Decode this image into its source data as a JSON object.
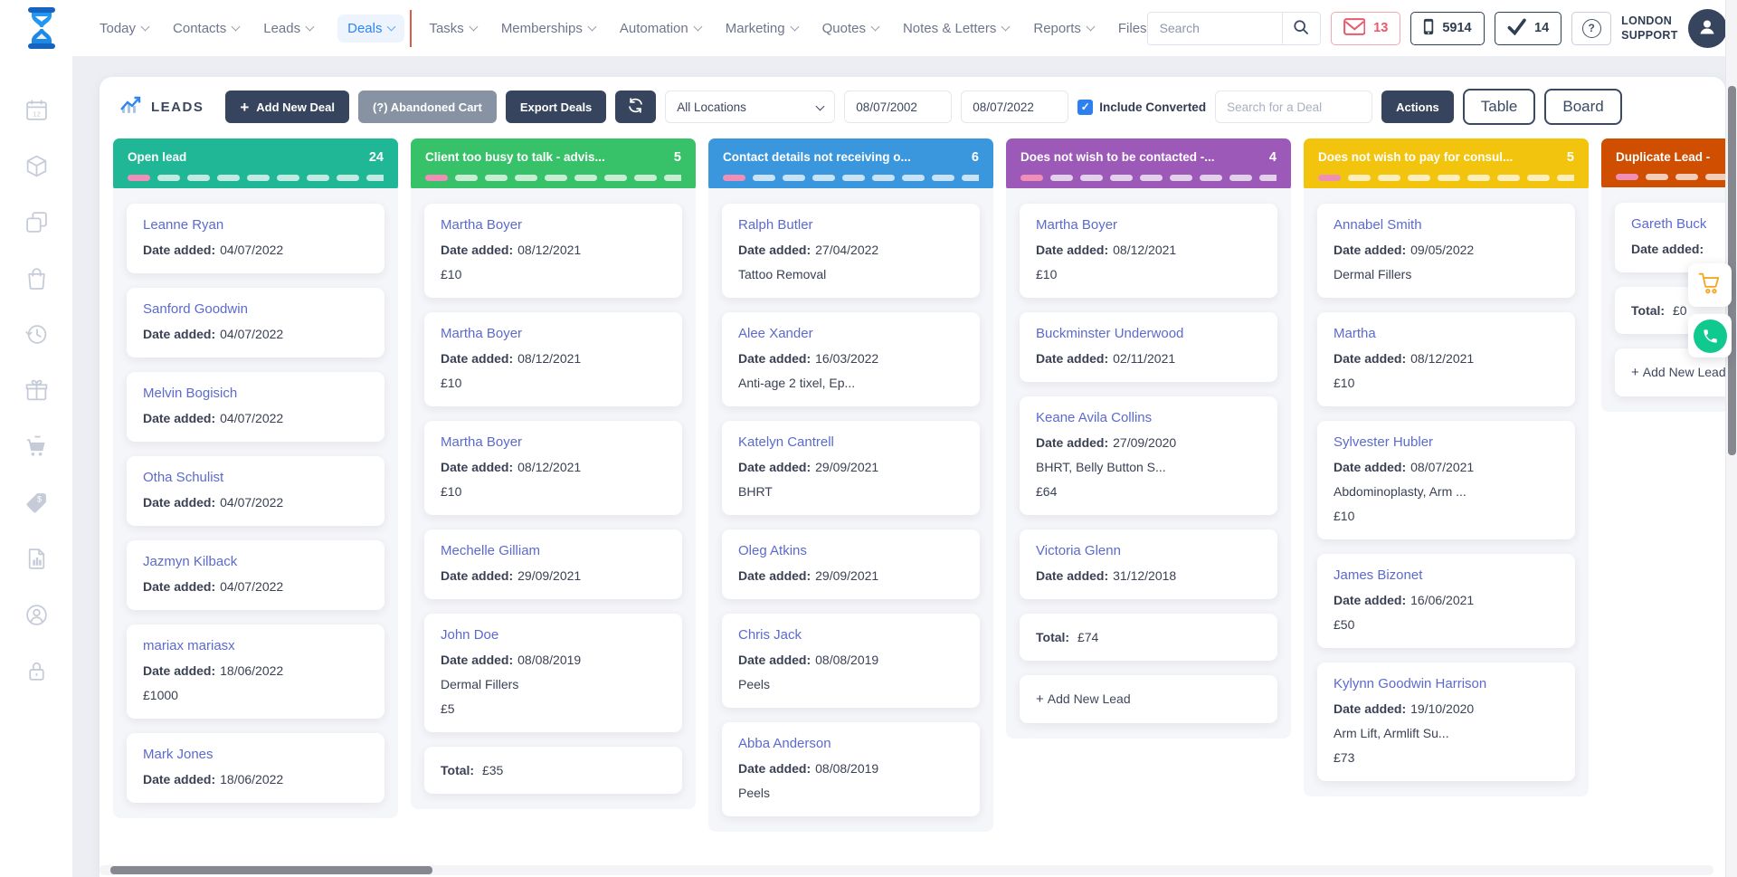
{
  "nav": {
    "items": [
      {
        "label": "Today"
      },
      {
        "label": "Contacts"
      },
      {
        "label": "Leads"
      },
      {
        "label": "Deals",
        "active": true
      },
      {
        "label": "Tasks"
      },
      {
        "label": "Memberships"
      },
      {
        "label": "Automation"
      },
      {
        "label": "Marketing"
      },
      {
        "label": "Quotes"
      },
      {
        "label": "Notes & Letters"
      },
      {
        "label": "Reports"
      },
      {
        "label": "Files",
        "chevron": false
      }
    ]
  },
  "topbar": {
    "search_placeholder": "Search",
    "badges": [
      {
        "name": "messages",
        "icon": "envelope",
        "value": "13",
        "style": "red"
      },
      {
        "name": "sms",
        "icon": "mobile",
        "value": "5914"
      },
      {
        "name": "tasks",
        "icon": "check",
        "value": "14"
      }
    ],
    "help_label": "?",
    "user_line1": "LONDON",
    "user_line2": "SUPPORT"
  },
  "toolbar": {
    "title": "LEADS",
    "add_deal": "Add New Deal",
    "abandoned_cart": "(?) Abandoned Cart",
    "export_deals": "Export Deals",
    "location": "All Locations",
    "date_from": "08/07/2002",
    "date_to": "08/07/2022",
    "include_converted": "Include Converted",
    "include_converted_checked": true,
    "deal_search_placeholder": "Search for a Deal",
    "actions": "Actions",
    "table": "Table",
    "board": "Board"
  },
  "board": {
    "date_label": "Date added:",
    "total_label": "Total:",
    "add_label": "Add New Lead",
    "columns": [
      {
        "title": "Open lead",
        "count": "24",
        "color": "#20b797",
        "cards": [
          {
            "type": "lead",
            "name": "Leanne Ryan",
            "date": "04/07/2022"
          },
          {
            "type": "lead",
            "name": "Sanford Goodwin",
            "date": "04/07/2022"
          },
          {
            "type": "lead",
            "name": "Melvin Bogisich",
            "date": "04/07/2022"
          },
          {
            "type": "lead",
            "name": "Otha Schulist",
            "date": "04/07/2022"
          },
          {
            "type": "lead",
            "name": "Jazmyn Kilback",
            "date": "04/07/2022"
          },
          {
            "type": "lead",
            "name": "mariax mariasx",
            "date": "18/06/2022",
            "extras": [
              "£1000"
            ]
          },
          {
            "type": "lead",
            "name": "Mark Jones",
            "date": "18/06/2022"
          }
        ]
      },
      {
        "title": "Client too busy to talk - advis...",
        "count": "5",
        "color": "#37c269",
        "cards": [
          {
            "type": "lead",
            "name": "Martha Boyer",
            "date": "08/12/2021",
            "extras": [
              "£10"
            ]
          },
          {
            "type": "lead",
            "name": "Martha Boyer",
            "date": "08/12/2021",
            "extras": [
              "£10"
            ]
          },
          {
            "type": "lead",
            "name": "Martha Boyer",
            "date": "08/12/2021",
            "extras": [
              "£10"
            ]
          },
          {
            "type": "lead",
            "name": "Mechelle Gilliam",
            "date": "29/09/2021"
          },
          {
            "type": "lead",
            "name": "John Doe",
            "date": "08/08/2019",
            "extras": [
              "Dermal Fillers",
              "£5"
            ]
          },
          {
            "type": "total",
            "value": "£35"
          }
        ]
      },
      {
        "title": "Contact details not receiving o...",
        "count": "6",
        "color": "#3b97dd",
        "cards": [
          {
            "type": "lead",
            "name": "Ralph Butler",
            "date": "27/04/2022",
            "extras": [
              "Tattoo Removal"
            ]
          },
          {
            "type": "lead",
            "name": "Alee Xander",
            "date": "16/03/2022",
            "extras": [
              "Anti-age 2 tixel, Ep..."
            ]
          },
          {
            "type": "lead",
            "name": "Katelyn Cantrell",
            "date": "29/09/2021",
            "extras": [
              "BHRT"
            ]
          },
          {
            "type": "lead",
            "name": "Oleg Atkins",
            "date": "29/09/2021"
          },
          {
            "type": "lead",
            "name": "Chris Jack",
            "date": "08/08/2019",
            "extras": [
              "Peels"
            ]
          },
          {
            "type": "lead",
            "name": "Abba Anderson",
            "date": "08/08/2019",
            "extras": [
              "Peels"
            ]
          }
        ]
      },
      {
        "title": "Does not wish to be contacted -...",
        "count": "4",
        "color": "#9c59b8",
        "cards": [
          {
            "type": "lead",
            "name": "Martha Boyer",
            "date": "08/12/2021",
            "extras": [
              "£10"
            ]
          },
          {
            "type": "lead",
            "name": "Buckminster Underwood",
            "date": "02/11/2021"
          },
          {
            "type": "lead",
            "name": "Keane Avila Collins",
            "date": "27/09/2020",
            "extras": [
              "BHRT, Belly Button S...",
              "£64"
            ]
          },
          {
            "type": "lead",
            "name": "Victoria Glenn",
            "date": "31/12/2018"
          },
          {
            "type": "total",
            "value": "£74"
          },
          {
            "type": "add"
          }
        ]
      },
      {
        "title": "Does not wish to pay for consul...",
        "count": "5",
        "color": "#f2c40e",
        "cards": [
          {
            "type": "lead",
            "name": "Annabel Smith",
            "date": "09/05/2022",
            "extras": [
              "Dermal Fillers"
            ]
          },
          {
            "type": "lead",
            "name": "Martha",
            "date": "08/12/2021",
            "extras": [
              "£10"
            ]
          },
          {
            "type": "lead",
            "name": "Sylvester Hubler",
            "date": "08/07/2021",
            "extras": [
              "Abdominoplasty, Arm ...",
              "£10"
            ]
          },
          {
            "type": "lead",
            "name": "James Bizonet",
            "date": "16/06/2021",
            "extras": [
              "£50"
            ]
          },
          {
            "type": "lead",
            "name": "Kylynn Goodwin Harrison",
            "date": "19/10/2020",
            "extras": [
              "Arm Lift, Armlift Su...",
              "£73"
            ]
          }
        ]
      },
      {
        "title": "Duplicate Lead -",
        "count": null,
        "color": "#cf4e00",
        "cards": [
          {
            "type": "lead",
            "name": "Gareth Buck",
            "date": ""
          },
          {
            "type": "total",
            "value": "£0"
          },
          {
            "type": "add"
          }
        ]
      }
    ]
  },
  "sidebar": {
    "icons": [
      "calendar-icon",
      "package-icon",
      "copy-icon",
      "bag-icon",
      "history-icon",
      "gift-icon",
      "cart-icon",
      "tag-icon",
      "report-icon",
      "account-icon",
      "lock-icon"
    ]
  },
  "floating": [
    {
      "name": "abandoned-cart-shortcut",
      "icon": "cart-orange",
      "color": "#f5a623"
    },
    {
      "name": "call-shortcut",
      "icon": "handset",
      "color": "#10c98f"
    }
  ],
  "colors": {
    "accent": "#2e86f0",
    "dark_button": "#36455d",
    "badge_red": "#e8596b",
    "link": "#5b6ace",
    "indicator_red": "#e2574c",
    "dash_pink": "#ef8fb7"
  }
}
